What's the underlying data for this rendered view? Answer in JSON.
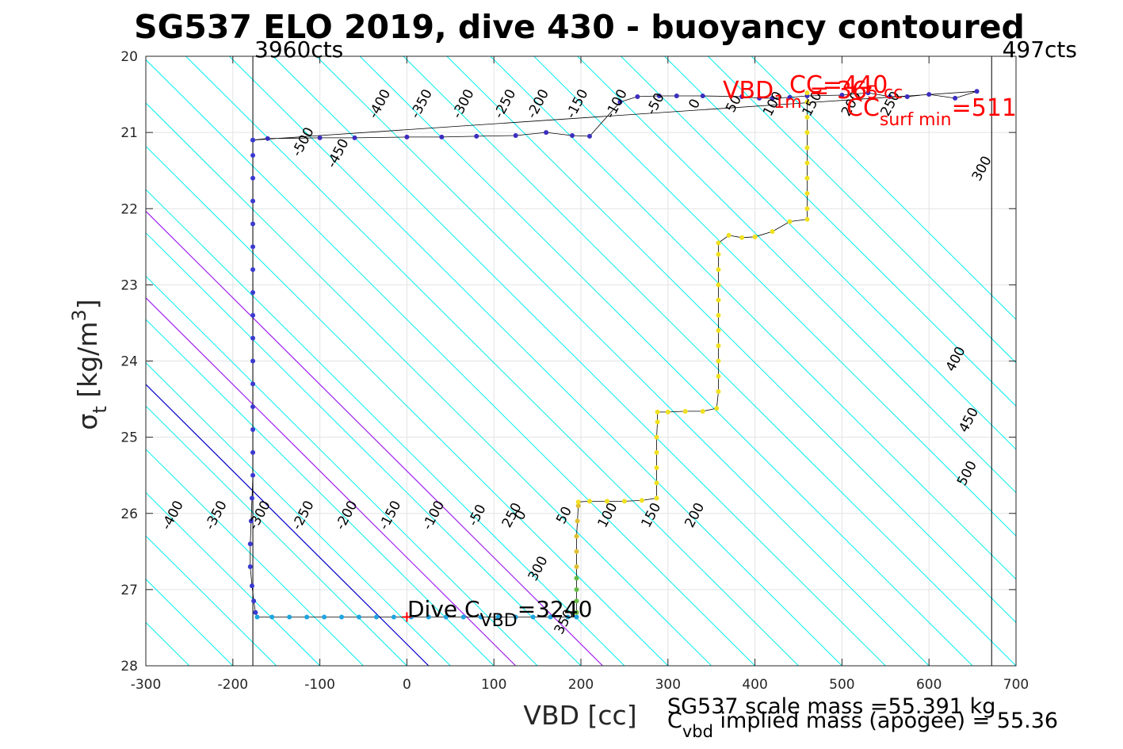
{
  "chart_data": {
    "type": "scatter",
    "title": "SG537 ELO 2019, dive 430 - buoyancy contoured",
    "xlabel": "VBD [cc]",
    "ylabel": {
      "sym": "σ",
      "sub": "t",
      "unit": " [kg/m",
      "sup": "3",
      "close": "]"
    },
    "xlim": [
      -300,
      700
    ],
    "ylim": [
      20,
      28
    ],
    "xticks": [
      -300,
      -200,
      -100,
      0,
      100,
      200,
      300,
      400,
      500,
      600,
      700
    ],
    "yticks": [
      20,
      21,
      22,
      23,
      24,
      25,
      26,
      27,
      28
    ],
    "xtick_labels": [
      "-300",
      "-200",
      "-100",
      "0",
      "100",
      "200",
      "300",
      "400",
      "500",
      "600",
      "700"
    ],
    "ytick_labels": [
      "20",
      "21",
      "22",
      "23",
      "24",
      "25",
      "26",
      "27",
      "28"
    ],
    "grid": true,
    "contour_spacing": 50,
    "contour_xoffset_per_sigma": 88,
    "contour_labels_bottom": [
      "-400",
      "-350",
      "-300",
      "-250",
      "-200",
      "-150",
      "-100",
      "-50",
      "0",
      "50",
      "100",
      "150",
      "200",
      "250",
      "300",
      "350"
    ],
    "contour_labels_top": [
      "-500",
      "-450",
      "-400",
      "-350",
      "-300",
      "-250",
      "-200",
      "-150",
      "-100",
      "-50",
      "0",
      "50",
      "100",
      "150",
      "200",
      "250"
    ],
    "contour_labels_right": [
      "300",
      "400",
      "450",
      "500"
    ],
    "top_labels": {
      "left": "3960cts",
      "right": "497cts"
    },
    "limit_lines": [
      -177,
      672
    ],
    "key_lines": [
      {
        "name": "blue",
        "vbd_at_28": 25,
        "color": "#0000cc"
      },
      {
        "name": "magenta-1",
        "vbd_at_28": 125,
        "color": "#a020f0"
      },
      {
        "name": "magenta-2",
        "vbd_at_28": 225,
        "color": "#a020f0"
      }
    ],
    "dive_cvbd": {
      "pre": "Dive C",
      "sub": "VBD",
      "post": "=3240",
      "vbd": 0,
      "sigma": 27.36
    },
    "annotations": {
      "cc_440": "CC=440",
      "vbd_1m": {
        "pre": "VBD",
        "sub": "1m",
        "mid": " = 36",
        "tail": "5 cc"
      },
      "cc_surf": {
        "pre": "CC",
        "sub": "surf min",
        "post": "=511"
      }
    },
    "series": [
      {
        "name": "surface-descent",
        "color": "#3b2dbf",
        "points": [
          [
            -177,
            21.1
          ],
          [
            -160,
            21.08
          ],
          [
            -100,
            21.07
          ],
          [
            -60,
            21.07
          ],
          [
            0,
            21.06
          ],
          [
            40,
            21.06
          ],
          [
            80,
            21.05
          ],
          [
            125,
            21.04
          ],
          [
            160,
            21.0
          ],
          [
            190,
            21.04
          ],
          [
            210,
            21.05
          ],
          [
            245,
            20.6
          ],
          [
            265,
            20.53
          ],
          [
            290,
            20.52
          ],
          [
            310,
            20.52
          ],
          [
            340,
            20.52
          ],
          [
            385,
            20.53
          ],
          [
            405,
            20.55
          ],
          [
            420,
            20.55
          ],
          [
            440,
            20.54
          ],
          [
            460,
            20.52
          ],
          [
            500,
            20.51
          ],
          [
            530,
            20.48
          ],
          [
            555,
            20.53
          ],
          [
            575,
            20.53
          ],
          [
            600,
            20.5
          ],
          [
            630,
            20.55
          ],
          [
            655,
            20.46
          ]
        ]
      },
      {
        "name": "descent",
        "color": "#3a3ad0",
        "points": [
          [
            -177,
            21.1
          ],
          [
            -177,
            21.3
          ],
          [
            -177,
            21.6
          ],
          [
            -177,
            21.9
          ],
          [
            -177,
            22.2
          ],
          [
            -177,
            22.5
          ],
          [
            -177,
            22.8
          ],
          [
            -177,
            23.1
          ],
          [
            -177,
            23.4
          ],
          [
            -177,
            23.7
          ],
          [
            -177,
            24.0
          ],
          [
            -177,
            24.3
          ],
          [
            -177,
            24.6
          ],
          [
            -177,
            24.9
          ],
          [
            -177,
            25.2
          ],
          [
            -177,
            25.5
          ],
          [
            -178,
            25.8
          ],
          [
            -179,
            26.1
          ],
          [
            -180,
            26.4
          ],
          [
            -180,
            26.7
          ],
          [
            -178,
            26.95
          ],
          [
            -176,
            27.15
          ],
          [
            -174,
            27.3
          ]
        ]
      },
      {
        "name": "bottom",
        "color": "#1ea5e0",
        "points": [
          [
            -172,
            27.36
          ],
          [
            -155,
            27.36
          ],
          [
            -135,
            27.36
          ],
          [
            -115,
            27.36
          ],
          [
            -95,
            27.36
          ],
          [
            -75,
            27.36
          ],
          [
            -55,
            27.36
          ],
          [
            -35,
            27.36
          ],
          [
            -15,
            27.36
          ],
          [
            5,
            27.36
          ],
          [
            25,
            27.36
          ],
          [
            45,
            27.36
          ],
          [
            65,
            27.36
          ],
          [
            85,
            27.36
          ],
          [
            105,
            27.36
          ],
          [
            125,
            27.36
          ],
          [
            145,
            27.36
          ],
          [
            165,
            27.36
          ],
          [
            185,
            27.36
          ],
          [
            195,
            27.36
          ]
        ]
      },
      {
        "name": "climb-low",
        "color": "#66bb44",
        "points": [
          [
            195,
            27.3
          ],
          [
            195,
            27.15
          ],
          [
            195,
            27.0
          ],
          [
            195,
            26.85
          ]
        ]
      },
      {
        "name": "climb-mid",
        "color": "#e0c030",
        "points": [
          [
            195,
            26.7
          ],
          [
            195,
            26.5
          ],
          [
            195,
            26.3
          ],
          [
            196,
            26.1
          ],
          [
            197,
            25.9
          ]
        ]
      },
      {
        "name": "climb-high",
        "color": "#f0e020",
        "points": [
          [
            197,
            25.85
          ],
          [
            210,
            25.84
          ],
          [
            230,
            25.84
          ],
          [
            250,
            25.84
          ],
          [
            270,
            25.83
          ],
          [
            287,
            25.8
          ],
          [
            287,
            25.6
          ],
          [
            287,
            25.4
          ],
          [
            287,
            25.2
          ],
          [
            287,
            25.0
          ],
          [
            288,
            24.8
          ],
          [
            288,
            24.67
          ],
          [
            300,
            24.67
          ],
          [
            320,
            24.66
          ],
          [
            340,
            24.66
          ],
          [
            356,
            24.62
          ],
          [
            358,
            24.4
          ],
          [
            358,
            24.2
          ],
          [
            358,
            24.0
          ],
          [
            358,
            23.8
          ],
          [
            358,
            23.6
          ],
          [
            358,
            23.4
          ],
          [
            358,
            23.2
          ],
          [
            358,
            23.0
          ],
          [
            358,
            22.8
          ],
          [
            358,
            22.6
          ],
          [
            358,
            22.45
          ],
          [
            370,
            22.35
          ],
          [
            385,
            22.38
          ],
          [
            400,
            22.37
          ],
          [
            420,
            22.3
          ],
          [
            440,
            22.17
          ],
          [
            460,
            22.14
          ],
          [
            460,
            22.0
          ],
          [
            460,
            21.8
          ],
          [
            460,
            21.6
          ],
          [
            460,
            21.4
          ],
          [
            460,
            21.2
          ],
          [
            460,
            21.0
          ],
          [
            460,
            20.8
          ],
          [
            460,
            20.6
          ],
          [
            460,
            20.48
          ]
        ]
      }
    ],
    "footer": {
      "scale_mass": "SG537 scale mass =55.391 kg",
      "implied_pre": "C",
      "implied_sub": "vbd",
      "implied_post": " implied mass (apogee) = 55.36"
    }
  }
}
